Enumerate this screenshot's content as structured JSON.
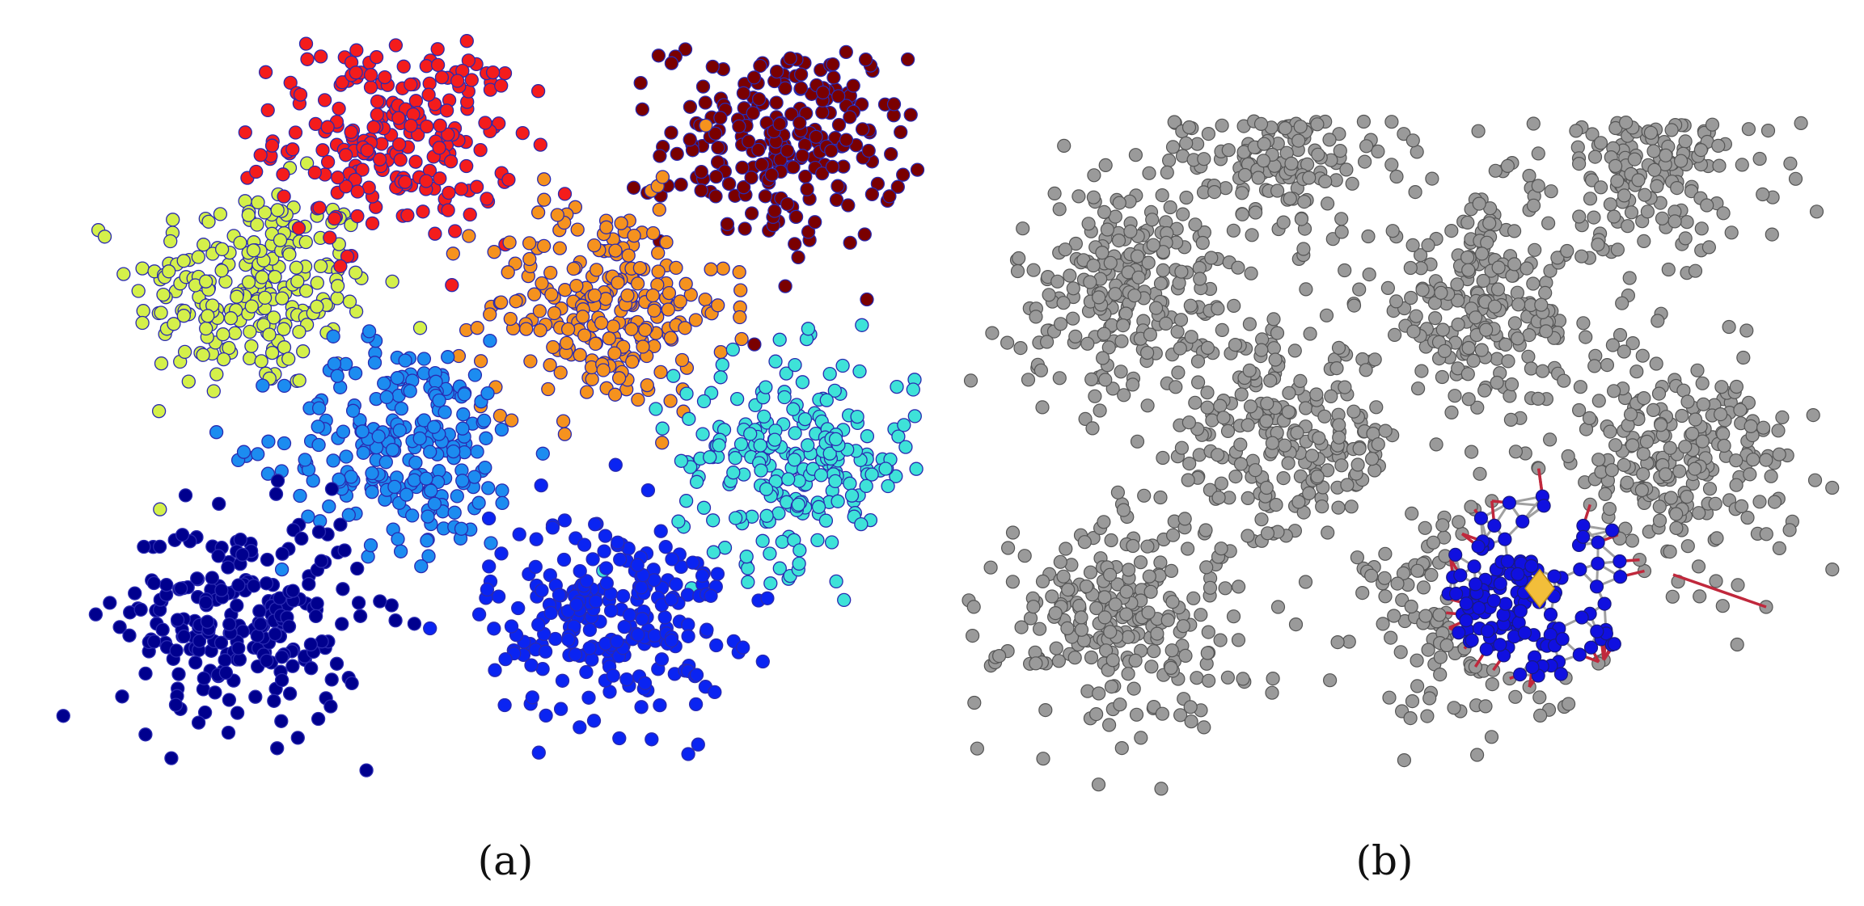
{
  "figure": {
    "panel_a": {
      "caption": "(a)",
      "clusters": [
        {
          "color": "#D4F04A",
          "cx": -6.5,
          "cy": 4.2,
          "n": 240
        },
        {
          "color": "#F41C1C",
          "cx": -2.8,
          "cy": 8.2,
          "n": 240
        },
        {
          "color": "#7A0000",
          "cx": 7.2,
          "cy": 8.0,
          "n": 240
        },
        {
          "color": "#F5921E",
          "cx": 2.6,
          "cy": 3.8,
          "n": 240
        },
        {
          "color": "#1C8CF0",
          "cx": -2.6,
          "cy": 0.2,
          "n": 240
        },
        {
          "color": "#3EE2D8",
          "cx": 7.5,
          "cy": -0.2,
          "n": 240
        },
        {
          "color": "#00008E",
          "cx": -6.8,
          "cy": -4.3,
          "n": 240
        },
        {
          "color": "#0A24F2",
          "cx": 2.7,
          "cy": -4.2,
          "n": 240
        }
      ]
    },
    "panel_b": {
      "caption": "(b)",
      "point_color": "#9A9A9A",
      "neighbor_color": "#1010E0",
      "edge_internal_color": "#A0A0A0",
      "edge_boundary_color": "#C0283C",
      "query_color": "#F2BE3A",
      "query_shape": "diamond",
      "query_point": {
        "x": 4.0,
        "y": -3.5
      }
    }
  }
}
